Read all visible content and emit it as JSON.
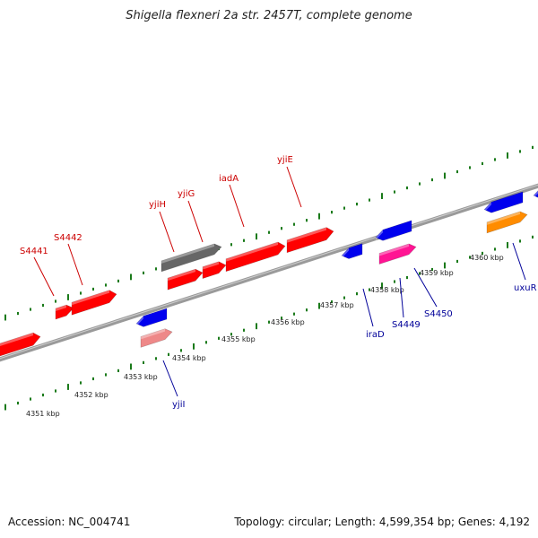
{
  "title": "Shigella flexneri 2a str. 2457T, complete genome",
  "footer": {
    "accession": "Accession: NC_004741",
    "summary": "Topology: circular; Length: 4,599,354 bp; Genes: 4,192"
  },
  "colors": {
    "forward_label": "#cc0000",
    "reverse_label": "#000099",
    "axis": "#888888",
    "tick": "#1a7a1a"
  },
  "scale_labels": [
    "4351 kbp",
    "4352 kbp",
    "4353 kbp",
    "4354 kbp",
    "4355 kbp",
    "4356 kbp",
    "4357 kbp",
    "4358 kbp",
    "4359 kbp",
    "4360 kbp"
  ],
  "genes_forward": [
    {
      "label": "S4441",
      "color": "#ff0000"
    },
    {
      "label": "S4442",
      "color": "#ff0000"
    },
    {
      "label": "yjiH",
      "color": "#666666"
    },
    {
      "label": "yjiG",
      "color": "#ff0000"
    },
    {
      "label": "iadA",
      "color": "#ff0000"
    },
    {
      "label": "yjiE",
      "color": "#ff0000"
    }
  ],
  "genes_reverse": [
    {
      "label": "yjiI",
      "color": "#ee8888"
    },
    {
      "label": "iraD",
      "color": "#0000ee"
    },
    {
      "label": "S4449",
      "color": "#0000ee"
    },
    {
      "label": "S4450",
      "color": "#ff1493"
    },
    {
      "label": "uxuR",
      "color": "#0000ee"
    }
  ]
}
